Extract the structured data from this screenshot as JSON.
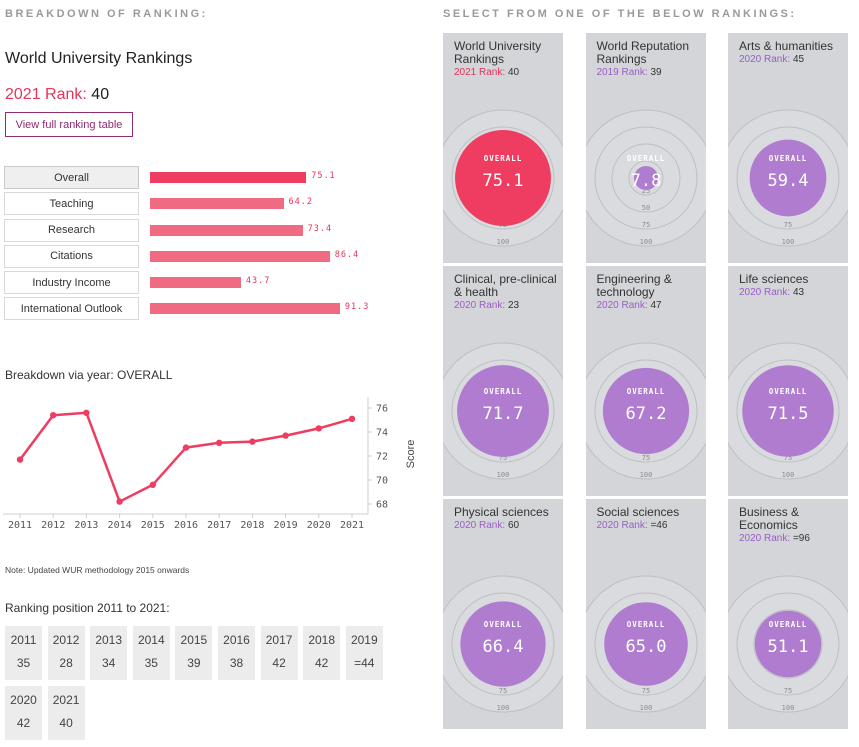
{
  "left_heading": "BREAKDOWN OF RANKING:",
  "right_heading": "SELECT FROM ONE OF THE BELOW RANKINGS:",
  "ranking": {
    "title": "World University Rankings",
    "rank_label": "2021 Rank:",
    "rank_value": "40",
    "full_table_button": "View full ranking table"
  },
  "metrics": [
    {
      "label": "Overall",
      "value": "75.1",
      "score": 75.1,
      "active": true
    },
    {
      "label": "Teaching",
      "value": "64.2",
      "score": 64.2,
      "active": false
    },
    {
      "label": "Research",
      "value": "73.4",
      "score": 73.4,
      "active": false
    },
    {
      "label": "Citations",
      "value": "86.4",
      "score": 86.4,
      "active": false
    },
    {
      "label": "Industry Income",
      "value": "43.7",
      "score": 43.7,
      "active": false
    },
    {
      "label": "International Outlook",
      "value": "91.3",
      "score": 91.3,
      "active": false
    }
  ],
  "year_chart_title": "Breakdown via year: OVERALL",
  "note": "Note: Updated WUR methodology 2015 onwards",
  "positions_title": "Ranking position 2011 to 2021:",
  "positions": [
    {
      "year": "2011",
      "rank": "35"
    },
    {
      "year": "2012",
      "rank": "28"
    },
    {
      "year": "2013",
      "rank": "34"
    },
    {
      "year": "2014",
      "rank": "35"
    },
    {
      "year": "2015",
      "rank": "39"
    },
    {
      "year": "2016",
      "rank": "38"
    },
    {
      "year": "2017",
      "rank": "42"
    },
    {
      "year": "2018",
      "rank": "42"
    },
    {
      "year": "2019",
      "rank": "=44"
    },
    {
      "year": "2020",
      "rank": "42"
    },
    {
      "year": "2021",
      "rank": "40"
    }
  ],
  "colors": {
    "accent_pink": "#ee3d61",
    "bar_pink": "#f06a82",
    "purple": "#b07ccf",
    "card_bg": "#d3d5d8"
  },
  "chart_data": {
    "type": "line",
    "x": [
      "2011",
      "2012",
      "2013",
      "2014",
      "2015",
      "2016",
      "2017",
      "2018",
      "2019",
      "2020",
      "2021"
    ],
    "series": [
      {
        "values": [
          71.7,
          75.4,
          75.6,
          68.2,
          69.6,
          72.7,
          73.1,
          73.2,
          73.7,
          74.3,
          75.1
        ]
      }
    ],
    "ylabel": "Score",
    "yticks": [
      "68",
      "70",
      "72",
      "74",
      "76"
    ],
    "ylim": [
      67.5,
      76.5
    ],
    "grid": false
  },
  "cards": [
    {
      "title": "World University Rankings",
      "rank_label": "2021 Rank:",
      "rank_value": "40",
      "overall_label": "OVERALL",
      "overall": "75.1",
      "overall_value": 75.1,
      "color": "pink"
    },
    {
      "title": "World Reputation Rankings",
      "rank_label": "2019 Rank:",
      "rank_value": "39",
      "overall_label": "OVERALL",
      "overall": "7.8",
      "overall_value": 7.8,
      "color": "purple"
    },
    {
      "title": "Arts & humanities",
      "rank_label": "2020 Rank:",
      "rank_value": "45",
      "overall_label": "OVERALL",
      "overall": "59.4",
      "overall_value": 59.4,
      "color": "purple"
    },
    {
      "title": "Clinical, pre-clinical & health",
      "rank_label": "2020 Rank:",
      "rank_value": "23",
      "overall_label": "OVERALL",
      "overall": "71.7",
      "overall_value": 71.7,
      "color": "purple"
    },
    {
      "title": "Engineering & technology",
      "rank_label": "2020 Rank:",
      "rank_value": "47",
      "overall_label": "OVERALL",
      "overall": "67.2",
      "overall_value": 67.2,
      "color": "purple"
    },
    {
      "title": "Life sciences",
      "rank_label": "2020 Rank:",
      "rank_value": "43",
      "overall_label": "OVERALL",
      "overall": "71.5",
      "overall_value": 71.5,
      "color": "purple"
    },
    {
      "title": "Physical sciences",
      "rank_label": "2020 Rank:",
      "rank_value": "60",
      "overall_label": "OVERALL",
      "overall": "66.4",
      "overall_value": 66.4,
      "color": "purple"
    },
    {
      "title": "Social sciences",
      "rank_label": "2020 Rank:",
      "rank_value": "=46",
      "overall_label": "OVERALL",
      "overall": "65.0",
      "overall_value": 65.0,
      "color": "purple"
    },
    {
      "title": "Business & Economics",
      "rank_label": "2020 Rank:",
      "rank_value": "=96",
      "overall_label": "OVERALL",
      "overall": "51.1",
      "overall_value": 51.1,
      "color": "purple"
    }
  ],
  "radar_ticks": [
    "25",
    "50",
    "75",
    "100"
  ]
}
